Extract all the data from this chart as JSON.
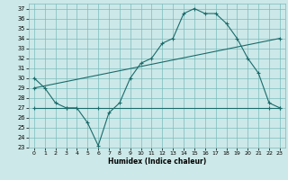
{
  "xlabel": "Humidex (Indice chaleur)",
  "bg_color": "#cce8e8",
  "grid_color": "#7bbcbc",
  "line_color": "#1a6b6b",
  "xlim": [
    -0.5,
    23.5
  ],
  "ylim": [
    23,
    37.5
  ],
  "xticks": [
    0,
    1,
    2,
    3,
    4,
    5,
    6,
    7,
    8,
    9,
    10,
    11,
    12,
    13,
    14,
    15,
    16,
    17,
    18,
    19,
    20,
    21,
    22,
    23
  ],
  "yticks": [
    23,
    24,
    25,
    26,
    27,
    28,
    29,
    30,
    31,
    32,
    33,
    34,
    35,
    36,
    37
  ],
  "line1_x": [
    0,
    1,
    2,
    3,
    4,
    5,
    6,
    7,
    8,
    9,
    10,
    11,
    12,
    13,
    14,
    15,
    16,
    17,
    18,
    19,
    20,
    21,
    22,
    23
  ],
  "line1_y": [
    30.0,
    29.0,
    27.5,
    27.0,
    27.0,
    25.5,
    23.2,
    26.5,
    27.5,
    30.0,
    31.5,
    32.0,
    33.5,
    34.0,
    36.5,
    37.0,
    36.5,
    36.5,
    35.5,
    34.0,
    32.0,
    30.5,
    27.5,
    27.0
  ],
  "line2_x": [
    0,
    3,
    6,
    22,
    23
  ],
  "line2_y": [
    27.0,
    27.0,
    27.0,
    27.0,
    27.0
  ],
  "line3_x": [
    0,
    23
  ],
  "line3_y": [
    29.0,
    34.0
  ]
}
